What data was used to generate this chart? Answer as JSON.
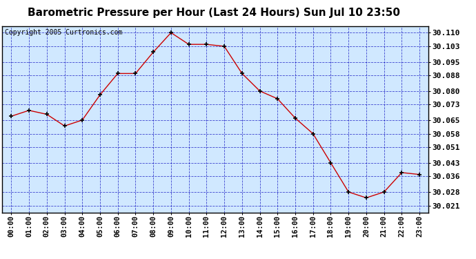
{
  "title": "Barometric Pressure per Hour (Last 24 Hours) Sun Jul 10 23:50",
  "copyright": "Copyright 2005 Curtronics.com",
  "x_labels": [
    "00:00",
    "01:00",
    "02:00",
    "03:00",
    "04:00",
    "05:00",
    "06:00",
    "07:00",
    "08:00",
    "09:00",
    "10:00",
    "11:00",
    "12:00",
    "13:00",
    "14:00",
    "15:00",
    "16:00",
    "17:00",
    "18:00",
    "19:00",
    "20:00",
    "21:00",
    "22:00",
    "23:00"
  ],
  "y_values": [
    30.067,
    30.07,
    30.068,
    30.062,
    30.065,
    30.078,
    30.089,
    30.089,
    30.1,
    30.11,
    30.104,
    30.104,
    30.103,
    30.089,
    30.08,
    30.076,
    30.066,
    30.058,
    30.043,
    30.028,
    30.025,
    30.028,
    30.038,
    30.037
  ],
  "ylim_min": 30.0175,
  "ylim_max": 30.1135,
  "y_ticks": [
    30.021,
    30.028,
    30.036,
    30.043,
    30.051,
    30.058,
    30.065,
    30.073,
    30.08,
    30.088,
    30.095,
    30.103,
    30.11
  ],
  "line_color": "#cc0000",
  "marker_color": "#cc0000",
  "plot_bg": "#d0e8ff",
  "grid_color": "#0000bb",
  "title_fontsize": 11,
  "copyright_fontsize": 7,
  "tick_fontsize": 7.5,
  "ytick_fontsize": 8
}
